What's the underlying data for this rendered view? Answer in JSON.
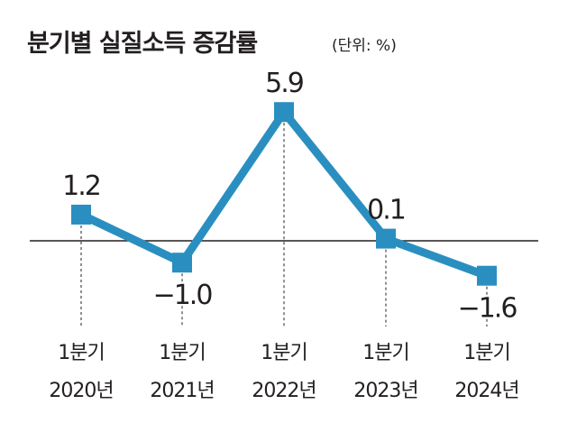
{
  "chart_data": {
    "type": "line",
    "title": "분기별 실질소득 증감률",
    "unit_note": "(단위: %)",
    "categories": [
      [
        "1분기",
        "2020년"
      ],
      [
        "1분기",
        "2021년"
      ],
      [
        "1분기",
        "2022년"
      ],
      [
        "1분기",
        "2023년"
      ],
      [
        "1분기",
        "2024년"
      ]
    ],
    "values": [
      1.2,
      -1.0,
      5.9,
      0.1,
      -1.6
    ],
    "data_labels": [
      "1.2",
      "−1.0",
      "5.9",
      "0.1",
      "−1.6"
    ],
    "baseline": 0,
    "ylim": [
      -3,
      7
    ],
    "grid": false,
    "series_color": "#2a8fc0",
    "axis_color": "#231f20"
  }
}
